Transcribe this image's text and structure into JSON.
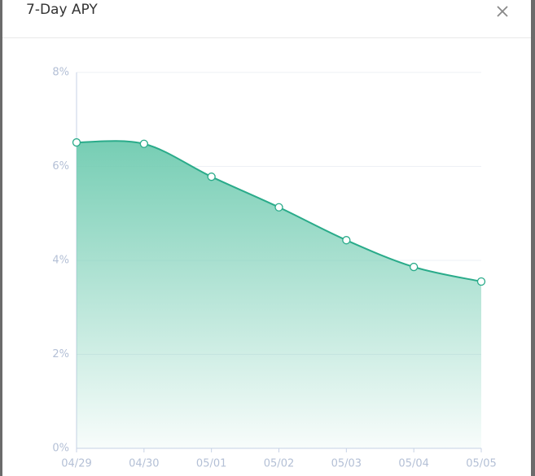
{
  "chart_data": {
    "type": "line",
    "title": "7-Day APY",
    "categories": [
      "04/29",
      "04/30",
      "05/01",
      "05/02",
      "05/03",
      "05/04",
      "05/05"
    ],
    "series": [
      {
        "name": "7-Day APY",
        "color": "#2aab8a",
        "values": [
          6.51,
          6.48,
          5.78,
          5.13,
          4.43,
          3.86,
          3.55
        ]
      }
    ],
    "ylim": [
      0,
      8
    ],
    "yticks": [
      {
        "value": 0,
        "label": "0%"
      },
      {
        "value": 2,
        "label": "2%"
      },
      {
        "value": 4,
        "label": "4%"
      },
      {
        "value": 6,
        "label": "6%"
      },
      {
        "value": 8,
        "label": "8%"
      }
    ],
    "grid": true
  }
}
